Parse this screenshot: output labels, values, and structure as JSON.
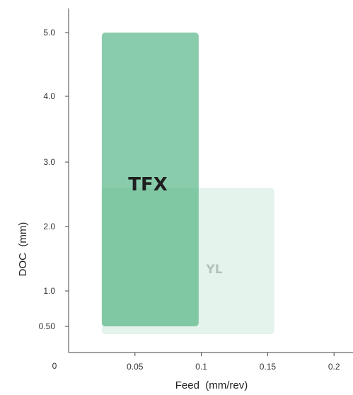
{
  "chart_data": {
    "type": "area",
    "title": "",
    "xlabel": "Feed  (mm/rev)",
    "ylabel": "DOC  (mm)",
    "origin_label": "0",
    "x_ticks": [
      {
        "value": 0.05,
        "label": "0.05"
      },
      {
        "value": 0.1,
        "label": "0.1"
      },
      {
        "value": 0.15,
        "label": "0.15"
      },
      {
        "value": 0.2,
        "label": "0.2"
      }
    ],
    "y_ticks": [
      {
        "value": 0.5,
        "label": "0.50"
      },
      {
        "value": 1.0,
        "label": "1.0"
      },
      {
        "value": 2.0,
        "label": "2.0"
      },
      {
        "value": 3.0,
        "label": "3.0"
      },
      {
        "value": 4.0,
        "label": "4.0"
      },
      {
        "value": 5.0,
        "label": "5.0"
      }
    ],
    "xlim": [
      0,
      0.2
    ],
    "ylim": [
      0,
      5.0
    ],
    "grid": false,
    "legend": "none",
    "regions": [
      {
        "name": "YL",
        "feed_range": [
          0.025,
          0.155
        ],
        "doc_range": [
          0.35,
          2.6
        ],
        "color": "#d2ebe0",
        "opacity": 0.6
      },
      {
        "name": "TFX",
        "feed_range": [
          0.025,
          0.098
        ],
        "doc_range": [
          0.5,
          5.0
        ],
        "color": "#49b07e",
        "opacity": 0.65
      }
    ]
  }
}
